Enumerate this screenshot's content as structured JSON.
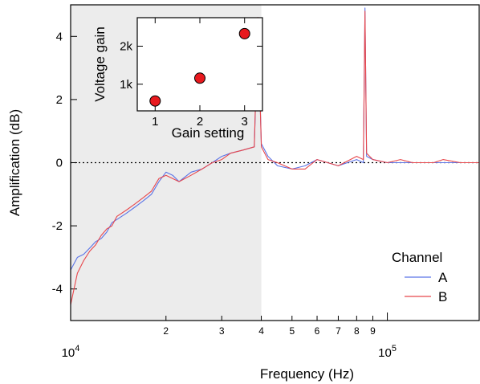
{
  "chart_data": [
    {
      "type": "line",
      "xlabel": "Frequency (Hz)",
      "ylabel": "Amplification (dB)",
      "xscale": "log",
      "xlim": [
        10000,
        195000
      ],
      "ylim": [
        -5,
        5
      ],
      "x_major_ticks": [
        {
          "value": 10000,
          "base": "10",
          "exp": "4"
        },
        {
          "value": 100000,
          "base": "10",
          "exp": "5"
        }
      ],
      "x_minor_ticks": [
        {
          "value": 20000,
          "label": "2"
        },
        {
          "value": 30000,
          "label": "3"
        },
        {
          "value": 40000,
          "label": "4"
        },
        {
          "value": 50000,
          "label": "5"
        },
        {
          "value": 60000,
          "label": "6"
        },
        {
          "value": 70000,
          "label": "7"
        },
        {
          "value": 80000,
          "label": "8"
        },
        {
          "value": 90000,
          "label": "9"
        }
      ],
      "y_ticks": [
        {
          "value": 4,
          "label": "4"
        },
        {
          "value": 2,
          "label": "2"
        },
        {
          "value": 0,
          "label": "0"
        },
        {
          "value": -2,
          "label": "-2"
        },
        {
          "value": -4,
          "label": "-4"
        }
      ],
      "reference_line": {
        "y": 0,
        "style": "dotted"
      },
      "shaded_region": {
        "x_from": 10000,
        "x_to": 40000,
        "color": "#ececec"
      },
      "legend": {
        "title": "Channel",
        "position": "bottom-right"
      },
      "series": [
        {
          "name": "A",
          "color": "#5a73e6",
          "x": [
            10000,
            10500,
            11000,
            11500,
            12000,
            12500,
            13000,
            13500,
            14000,
            15000,
            16000,
            17000,
            18000,
            19000,
            20000,
            21000,
            22000,
            24000,
            26000,
            28000,
            30000,
            32000,
            35000,
            38000,
            39000,
            40000,
            42000,
            45000,
            50000,
            55000,
            60000,
            70000,
            80000,
            84000,
            85000,
            86000,
            90000,
            100000,
            110000,
            120000,
            130000,
            140000,
            150000,
            170000,
            195000
          ],
          "y": [
            -3.4,
            -3.0,
            -2.9,
            -2.7,
            -2.5,
            -2.4,
            -2.2,
            -1.9,
            -1.8,
            -1.6,
            -1.4,
            -1.2,
            -1.0,
            -0.6,
            -0.3,
            -0.4,
            -0.6,
            -0.3,
            -0.2,
            0.0,
            0.2,
            0.3,
            0.4,
            0.5,
            4.3,
            0.6,
            0.2,
            -0.1,
            -0.2,
            -0.1,
            0.1,
            -0.1,
            0.1,
            0.0,
            4.9,
            0.2,
            0.1,
            0.0,
            0.0,
            0.0,
            0.0,
            0.0,
            0.0,
            0.0,
            0.0
          ]
        },
        {
          "name": "B",
          "color": "#e8474c",
          "x": [
            10000,
            10500,
            11000,
            11500,
            12000,
            12500,
            13000,
            13500,
            14000,
            15000,
            16000,
            17000,
            18000,
            19000,
            20000,
            21000,
            22000,
            24000,
            26000,
            28000,
            30000,
            32000,
            35000,
            38000,
            39000,
            40000,
            42000,
            45000,
            50000,
            55000,
            60000,
            70000,
            80000,
            84000,
            85000,
            86000,
            90000,
            100000,
            110000,
            120000,
            130000,
            140000,
            150000,
            170000,
            195000
          ],
          "y": [
            -4.5,
            -3.5,
            -3.1,
            -2.8,
            -2.6,
            -2.3,
            -2.1,
            -2.0,
            -1.7,
            -1.5,
            -1.3,
            -1.1,
            -0.9,
            -0.5,
            -0.4,
            -0.5,
            -0.6,
            -0.4,
            -0.2,
            0.0,
            0.1,
            0.3,
            0.4,
            0.5,
            4.6,
            0.5,
            0.1,
            0.0,
            -0.2,
            -0.2,
            0.1,
            -0.1,
            0.2,
            0.1,
            4.8,
            0.3,
            0.1,
            0.0,
            0.1,
            0.0,
            0.0,
            0.0,
            0.1,
            0.0,
            0.0
          ]
        }
      ]
    },
    {
      "type": "scatter",
      "xlabel": "Gain setting",
      "ylabel": "Voltage gain",
      "xlim": [
        0.6,
        3.4
      ],
      "ylim": [
        300,
        2750
      ],
      "x_ticks": [
        {
          "value": 1,
          "label": "1"
        },
        {
          "value": 2,
          "label": "2"
        },
        {
          "value": 3,
          "label": "3"
        }
      ],
      "y_ticks": [
        {
          "value": 1000,
          "label": "1k"
        },
        {
          "value": 2000,
          "label": "2k"
        }
      ],
      "marker_color": "#e8191e",
      "x": [
        1,
        2,
        3
      ],
      "y": [
        560,
        1160,
        2330
      ]
    }
  ]
}
